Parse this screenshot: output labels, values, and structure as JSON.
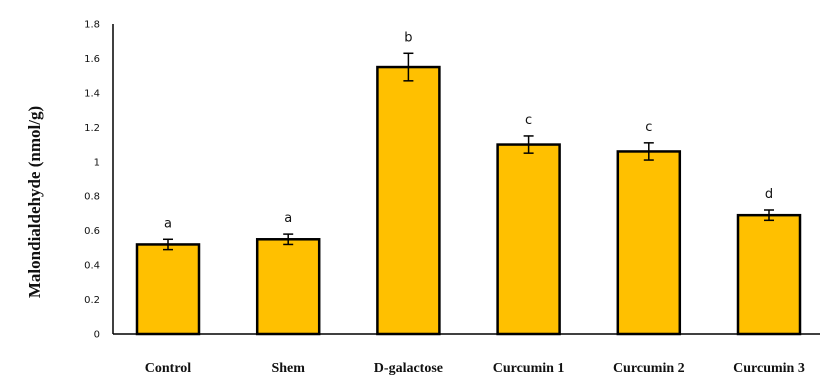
{
  "chart_data": {
    "type": "bar",
    "title": "",
    "xlabel": "",
    "ylabel": "Malondialdehyde (nmol/g)",
    "ylim": [
      0,
      1.8
    ],
    "yticks": [
      "0",
      "0.2",
      "0.4",
      "0.6",
      "0.8",
      "1",
      "1.2",
      "1.4",
      "1.6",
      "1.8"
    ],
    "grid": false,
    "legend": "none",
    "categories": [
      "Control",
      "Shem",
      "D-galactose",
      "Curcumin 1",
      "Curcumin 2",
      "Curcumin 3"
    ],
    "values": [
      0.52,
      0.55,
      1.55,
      1.1,
      1.06,
      0.69
    ],
    "errors": [
      0.03,
      0.03,
      0.08,
      0.05,
      0.05,
      0.03
    ],
    "significance_labels": [
      "a",
      "a",
      "b",
      "c",
      "c",
      "d"
    ],
    "bar_color": "#FFC000",
    "bar_edge_color": "#000000"
  }
}
